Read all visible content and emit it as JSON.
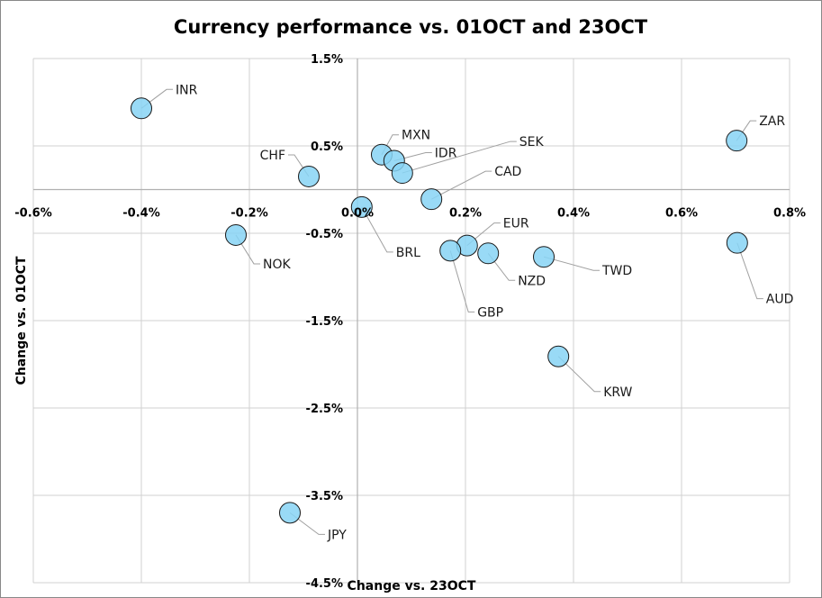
{
  "chart_data": {
    "type": "scatter",
    "title": "Currency performance vs. 01OCT and 23OCT",
    "xlabel": "Change vs. 23OCT",
    "ylabel": "Change vs. 01OCT",
    "xlim": [
      -0.6,
      0.8
    ],
    "ylim": [
      -4.5,
      1.5
    ],
    "x_ticks": [
      -0.6,
      -0.4,
      -0.2,
      0.0,
      0.2,
      0.4,
      0.6,
      0.8
    ],
    "x_tick_labels": [
      "-0.6%",
      "-0.4%",
      "-0.2%",
      "0.0%",
      "0.2%",
      "0.4%",
      "0.6%",
      "0.8%"
    ],
    "y_ticks": [
      1.5,
      0.5,
      -0.5,
      -1.5,
      -2.5,
      -3.5,
      -4.5
    ],
    "y_tick_labels": [
      "1.5%",
      "0.5%",
      "-0.5%",
      "-1.5%",
      "-2.5%",
      "-3.5%",
      "-4.5%"
    ],
    "grid": true,
    "marker_color": "#87d4f5",
    "marker_edge": "#1a1a1a",
    "points": [
      {
        "label": "INR",
        "x": -0.4,
        "y": 0.93
      },
      {
        "label": "CHF",
        "x": -0.09,
        "y": 0.15
      },
      {
        "label": "MXN",
        "x": 0.045,
        "y": 0.4
      },
      {
        "label": "IDR",
        "x": 0.068,
        "y": 0.33
      },
      {
        "label": "SEK",
        "x": 0.083,
        "y": 0.19
      },
      {
        "label": "CAD",
        "x": 0.137,
        "y": -0.11
      },
      {
        "label": "BRL",
        "x": 0.008,
        "y": -0.2
      },
      {
        "label": "NOK",
        "x": -0.225,
        "y": -0.52
      },
      {
        "label": "EUR",
        "x": 0.203,
        "y": -0.64
      },
      {
        "label": "GBP",
        "x": 0.172,
        "y": -0.7
      },
      {
        "label": "NZD",
        "x": 0.242,
        "y": -0.73
      },
      {
        "label": "TWD",
        "x": 0.345,
        "y": -0.77
      },
      {
        "label": "AUD",
        "x": 0.703,
        "y": -0.61
      },
      {
        "label": "ZAR",
        "x": 0.702,
        "y": 0.56
      },
      {
        "label": "KRW",
        "x": 0.372,
        "y": -1.91
      },
      {
        "label": "JPY",
        "x": -0.125,
        "y": -3.7
      }
    ]
  }
}
